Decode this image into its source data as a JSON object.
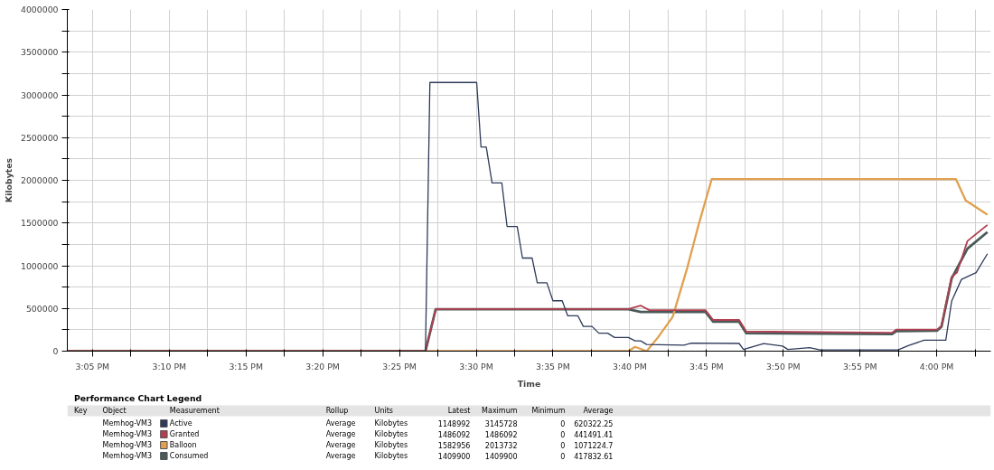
{
  "chart_data": {
    "type": "line",
    "xlabel": "Time",
    "ylabel": "Kilobytes",
    "xlim": [
      15.056,
      16.0588
    ],
    "ylim": [
      0,
      4000000
    ],
    "xticks": [
      {
        "value": 15.0833,
        "label": "3:05 PM"
      },
      {
        "value": 15.125,
        "label": null
      },
      {
        "value": 15.1667,
        "label": "3:10 PM"
      },
      {
        "value": 15.2083,
        "label": null
      },
      {
        "value": 15.25,
        "label": "3:15 PM"
      },
      {
        "value": 15.2917,
        "label": null
      },
      {
        "value": 15.3333,
        "label": "3:20 PM"
      },
      {
        "value": 15.375,
        "label": null
      },
      {
        "value": 15.4167,
        "label": "3:25 PM"
      },
      {
        "value": 15.4583,
        "label": null
      },
      {
        "value": 15.5,
        "label": "3:30 PM"
      },
      {
        "value": 15.5417,
        "label": null
      },
      {
        "value": 15.5833,
        "label": "3:35 PM"
      },
      {
        "value": 15.625,
        "label": null
      },
      {
        "value": 15.6667,
        "label": "3:40 PM"
      },
      {
        "value": 15.7083,
        "label": null
      },
      {
        "value": 15.75,
        "label": "3:45 PM"
      },
      {
        "value": 15.7917,
        "label": null
      },
      {
        "value": 15.8333,
        "label": "3:50 PM"
      },
      {
        "value": 15.875,
        "label": null
      },
      {
        "value": 15.9167,
        "label": "3:55 PM"
      },
      {
        "value": 15.9583,
        "label": null
      },
      {
        "value": 16.0,
        "label": "4:00 PM"
      },
      {
        "value": 16.0417,
        "label": null
      }
    ],
    "yticks": [
      0,
      {
        "value": 250000,
        "label": null
      },
      500000,
      {
        "value": 750000,
        "label": null
      },
      1000000,
      {
        "value": 1250000,
        "label": null
      },
      1500000,
      {
        "value": 1750000,
        "label": null
      },
      2000000,
      {
        "value": 2250000,
        "label": null
      },
      2500000,
      {
        "value": 2750000,
        "label": null
      },
      3000000,
      {
        "value": 3250000,
        "label": null
      },
      3500000,
      {
        "value": 3750000,
        "label": null
      },
      4000000
    ],
    "grid": true,
    "legend": "bottom",
    "line_style": "solid",
    "marker": "none",
    "series": [
      {
        "name": "Active",
        "color": "#2e3a5a",
        "x": [
          15.056,
          15.4449,
          15.4497,
          15.5005,
          15.5052,
          15.5109,
          15.5172,
          15.5278,
          15.5335,
          15.5445,
          15.5502,
          15.5607,
          15.5663,
          15.5767,
          15.5833,
          15.5934,
          15.5993,
          15.6103,
          15.6163,
          15.6257,
          15.6332,
          15.6427,
          15.6502,
          15.6653,
          15.6725,
          15.6785,
          15.6851,
          15.7256,
          15.7337,
          15.7855,
          15.7902,
          15.8122,
          15.8326,
          15.8385,
          15.8621,
          15.8734,
          15.9581,
          15.9692,
          15.9864,
          16.0099,
          16.0162,
          16.0269,
          16.0428,
          16.0551
        ],
        "values": [
          0,
          0,
          3145728,
          3145728,
          2390000,
          2390000,
          1970000,
          1970000,
          1460000,
          1460000,
          1090000,
          1090000,
          800000,
          800000,
          590000,
          590000,
          415000,
          415000,
          290000,
          290000,
          210000,
          210000,
          160000,
          160000,
          120000,
          120000,
          78000,
          70000,
          94000,
          90000,
          20000,
          88000,
          60000,
          20000,
          40000,
          15000,
          15000,
          65000,
          128000,
          128000,
          584000,
          840000,
          920000,
          1140000
        ]
      },
      {
        "name": "Granted",
        "color": "#b04050",
        "x": [
          15.056,
          15.4449,
          15.456,
          15.6653,
          15.6785,
          15.6879,
          15.749,
          15.7573,
          15.7855,
          15.7933,
          15.9515,
          15.9562,
          16.0005,
          16.0052,
          16.0162,
          16.0221,
          16.0334,
          16.0551
        ],
        "values": [
          0,
          0,
          493000,
          493000,
          534000,
          480000,
          480000,
          365000,
          365000,
          230000,
          215000,
          253000,
          253000,
          297000,
          870000,
          920000,
          1290000,
          1478000
        ]
      },
      {
        "name": "Balloon",
        "color": "#e0a050",
        "x": [
          15.056,
          15.6653,
          15.6725,
          15.6851,
          15.6973,
          15.7133,
          15.729,
          15.7415,
          15.7557,
          16.0209,
          16.0315,
          16.0551
        ],
        "values": [
          0,
          0,
          50000,
          0,
          160000,
          400000,
          970000,
          1480000,
          2013732,
          2013732,
          1765000,
          1597000
        ]
      },
      {
        "name": "Consumed",
        "color": "#4a5a5a",
        "x": [
          15.056,
          15.4449,
          15.456,
          15.6653,
          15.6785,
          15.749,
          15.7573,
          15.7855,
          15.7933,
          15.9515,
          15.9562,
          16.0005,
          16.0052,
          16.0162,
          16.0334,
          16.0551
        ],
        "values": [
          0,
          0,
          490000,
          490000,
          460000,
          460000,
          345000,
          345000,
          210000,
          200000,
          235000,
          240000,
          285000,
          850000,
          1200000,
          1394000
        ]
      }
    ],
    "annotations": [
      "Performance Chart Legend",
      "Key",
      "Object",
      "Measurement",
      "Rollup",
      "Units",
      "Latest",
      "Maximum",
      "Minimum",
      "Average",
      "Memhog-VM3",
      "Average",
      "Kilobytes",
      "1148992",
      "3145728",
      "0",
      "620322.25",
      "Memhog-VM3",
      "Average",
      "Kilobytes",
      "1486092",
      "1486092",
      "0",
      "441491.41",
      "Memhog-VM3",
      "Average",
      "Kilobytes",
      "1582956",
      "2013732",
      "0",
      "1071224.7",
      "Memhog-VM3",
      "Average",
      "Kilobytes",
      "1409900",
      "1409900",
      "0",
      "417832.61"
    ]
  }
}
